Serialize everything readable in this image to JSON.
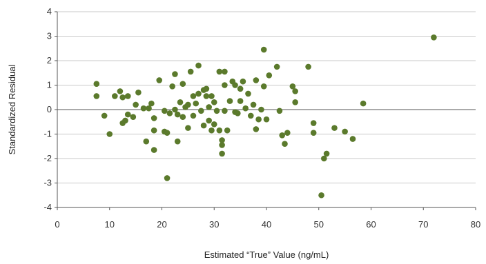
{
  "chart_data": {
    "type": "scatter",
    "title": "",
    "xlabel": "Estimated “True” Value (ng/mL)",
    "ylabel": "Standardized Residual",
    "xlim": [
      0,
      80
    ],
    "ylim": [
      -4,
      4
    ],
    "x_ticks": [
      0,
      10,
      20,
      30,
      40,
      50,
      60,
      70,
      80
    ],
    "y_ticks": [
      -4,
      -3,
      -2,
      -1,
      0,
      1,
      2,
      3,
      4
    ],
    "grid": "horizontal",
    "legend": "none",
    "marker_color": "#5b7a2c",
    "points": [
      [
        7.5,
        1.05
      ],
      [
        7.5,
        0.55
      ],
      [
        9.0,
        -0.25
      ],
      [
        10.0,
        -1.0
      ],
      [
        11.0,
        0.55
      ],
      [
        12.0,
        0.75
      ],
      [
        12.5,
        -0.55
      ],
      [
        12.5,
        0.5
      ],
      [
        13.0,
        -0.45
      ],
      [
        13.5,
        -0.2
      ],
      [
        13.5,
        0.55
      ],
      [
        14.5,
        -0.3
      ],
      [
        15.0,
        0.2
      ],
      [
        15.5,
        0.7
      ],
      [
        16.5,
        0.05
      ],
      [
        17.0,
        -1.3
      ],
      [
        17.5,
        0.05
      ],
      [
        18.0,
        0.25
      ],
      [
        18.5,
        -0.35
      ],
      [
        18.5,
        -0.85
      ],
      [
        18.5,
        -1.65
      ],
      [
        19.5,
        1.2
      ],
      [
        20.5,
        -0.05
      ],
      [
        20.5,
        -0.9
      ],
      [
        21.0,
        -2.8
      ],
      [
        21.0,
        -0.95
      ],
      [
        21.5,
        -0.15
      ],
      [
        22.0,
        0.95
      ],
      [
        22.5,
        1.45
      ],
      [
        22.5,
        0.0
      ],
      [
        23.0,
        -1.3
      ],
      [
        23.0,
        -0.2
      ],
      [
        23.5,
        0.3
      ],
      [
        24.0,
        1.05
      ],
      [
        24.0,
        -0.3
      ],
      [
        24.5,
        0.1
      ],
      [
        25.0,
        -0.75
      ],
      [
        25.0,
        0.2
      ],
      [
        25.5,
        1.55
      ],
      [
        26.0,
        -0.25
      ],
      [
        26.0,
        0.55
      ],
      [
        26.5,
        0.25
      ],
      [
        27.0,
        1.8
      ],
      [
        27.0,
        0.65
      ],
      [
        27.5,
        -0.05
      ],
      [
        28.0,
        0.8
      ],
      [
        28.0,
        -0.65
      ],
      [
        28.5,
        0.85
      ],
      [
        28.5,
        0.55
      ],
      [
        29.0,
        0.1
      ],
      [
        29.0,
        -0.45
      ],
      [
        29.5,
        0.55
      ],
      [
        29.5,
        -0.85
      ],
      [
        30.0,
        0.3
      ],
      [
        30.0,
        -0.6
      ],
      [
        30.5,
        -0.05
      ],
      [
        31.0,
        -0.85
      ],
      [
        31.0,
        1.55
      ],
      [
        31.5,
        -1.25
      ],
      [
        31.5,
        -1.45
      ],
      [
        31.5,
        -1.8
      ],
      [
        32.0,
        1.55
      ],
      [
        32.0,
        1.0
      ],
      [
        32.0,
        -0.05
      ],
      [
        32.5,
        -0.85
      ],
      [
        33.0,
        0.35
      ],
      [
        33.5,
        1.15
      ],
      [
        34.0,
        1.0
      ],
      [
        34.0,
        -0.1
      ],
      [
        34.5,
        -0.15
      ],
      [
        35.0,
        0.85
      ],
      [
        35.0,
        0.35
      ],
      [
        35.5,
        1.15
      ],
      [
        36.0,
        0.05
      ],
      [
        36.5,
        0.65
      ],
      [
        37.0,
        -0.25
      ],
      [
        37.5,
        0.2
      ],
      [
        38.0,
        1.2
      ],
      [
        38.0,
        -0.8
      ],
      [
        38.5,
        -0.4
      ],
      [
        39.0,
        0.0
      ],
      [
        39.5,
        2.45
      ],
      [
        39.5,
        0.95
      ],
      [
        40.0,
        -0.4
      ],
      [
        40.5,
        1.4
      ],
      [
        42.0,
        1.75
      ],
      [
        42.5,
        -0.05
      ],
      [
        43.0,
        -1.05
      ],
      [
        43.5,
        -1.4
      ],
      [
        44.0,
        -0.95
      ],
      [
        45.0,
        0.95
      ],
      [
        45.5,
        0.75
      ],
      [
        45.5,
        0.3
      ],
      [
        48.0,
        1.75
      ],
      [
        49.0,
        -0.55
      ],
      [
        49.0,
        -0.95
      ],
      [
        50.5,
        -3.5
      ],
      [
        51.0,
        -2.0
      ],
      [
        51.5,
        -1.8
      ],
      [
        53.0,
        -0.75
      ],
      [
        55.0,
        -0.9
      ],
      [
        56.5,
        -1.2
      ],
      [
        58.5,
        0.25
      ],
      [
        72.0,
        2.95
      ]
    ]
  }
}
